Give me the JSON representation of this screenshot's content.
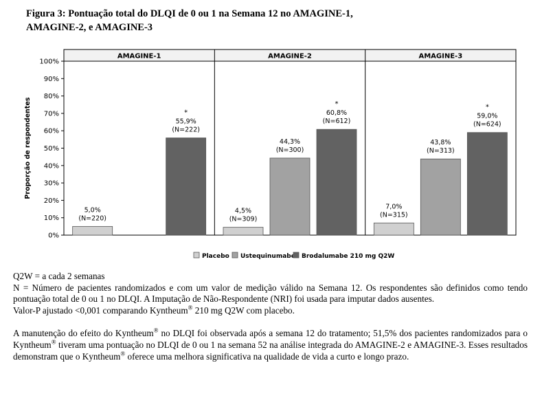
{
  "title": {
    "line1": "Figura 3: Pontuação total do DLQI de 0 ou 1 na Semana 12 no AMAGINE-1,",
    "line2": "AMAGINE-2, e AMAGINE-3"
  },
  "chart_data": {
    "type": "bar",
    "title": "Figura 3: Pontuação total do DLQI de 0 ou 1 na Semana 12 no AMAGINE-1, AMAGINE-2, e AMAGINE-3",
    "ylabel": "Proporção de respondentes",
    "ylim": [
      0,
      100
    ],
    "yticks": [
      "0%",
      "10%",
      "20%",
      "30%",
      "40%",
      "50%",
      "60%",
      "70%",
      "80%",
      "90%",
      "100%"
    ],
    "grid": false,
    "legend_position": "bottom",
    "panels": [
      {
        "name": "AMAGINE-1",
        "bars": [
          {
            "series": "Placebo",
            "value": 5.0,
            "label": "5,0%",
            "n": "(N=220)",
            "star": ""
          },
          {
            "series": "Brodalumabe 210 mg Q2W",
            "value": 55.9,
            "label": "55,9%",
            "n": "(N=222)",
            "star": "*"
          }
        ]
      },
      {
        "name": "AMAGINE-2",
        "bars": [
          {
            "series": "Placebo",
            "value": 4.5,
            "label": "4,5%",
            "n": "(N=309)",
            "star": ""
          },
          {
            "series": "Ustequinumabe",
            "value": 44.3,
            "label": "44,3%",
            "n": "(N=300)",
            "star": ""
          },
          {
            "series": "Brodalumabe 210 mg Q2W",
            "value": 60.8,
            "label": "60,8%",
            "n": "(N=612)",
            "star": "*"
          }
        ]
      },
      {
        "name": "AMAGINE-3",
        "bars": [
          {
            "series": "Placebo",
            "value": 7.0,
            "label": "7,0%",
            "n": "(N=315)",
            "star": ""
          },
          {
            "series": "Ustequinumabe",
            "value": 43.8,
            "label": "43,8%",
            "n": "(N=313)",
            "star": ""
          },
          {
            "series": "Brodalumabe 210 mg Q2W",
            "value": 59.0,
            "label": "59,0%",
            "n": "(N=624)",
            "star": "*"
          }
        ]
      }
    ],
    "series": [
      {
        "name": "Placebo",
        "color": "#d0d0d0"
      },
      {
        "name": "Ustequinumabe",
        "color": "#a2a2a2"
      },
      {
        "name": "Brodalumabe 210 mg Q2W",
        "color": "#626262"
      }
    ]
  },
  "notes": {
    "q2w": "Q2W = a cada 2 semanas",
    "n_def": "N = Número de pacientes randomizados e com um valor de medição válido na Semana 12. Os respondentes são definidos como tendo pontuação total de 0 ou 1 no DLQI. A Imputação de Não-Respondente (NRI) foi usada para imputar dados ausentes.",
    "pvalue_a": "Valor-P ajustado <0,001 comparando Kyntheum",
    "pvalue_b": " 210 mg Q2W com placebo.",
    "reg": "®",
    "para_a": "A manutenção do efeito do Kyntheum",
    "para_b": " no DLQI foi observada após a semana 12 do tratamento; 51,5% dos pacientes randomizados para o Kyntheum",
    "para_c": " tiveram uma pontuação no DLQI de 0 ou 1 na semana 52 na análise integrada do AMAGINE-2 e AMAGINE-3. Esses resultados demonstram que o Kyntheum",
    "para_d": " oferece uma melhora significativa na qualidade de vida a curto e longo prazo."
  }
}
